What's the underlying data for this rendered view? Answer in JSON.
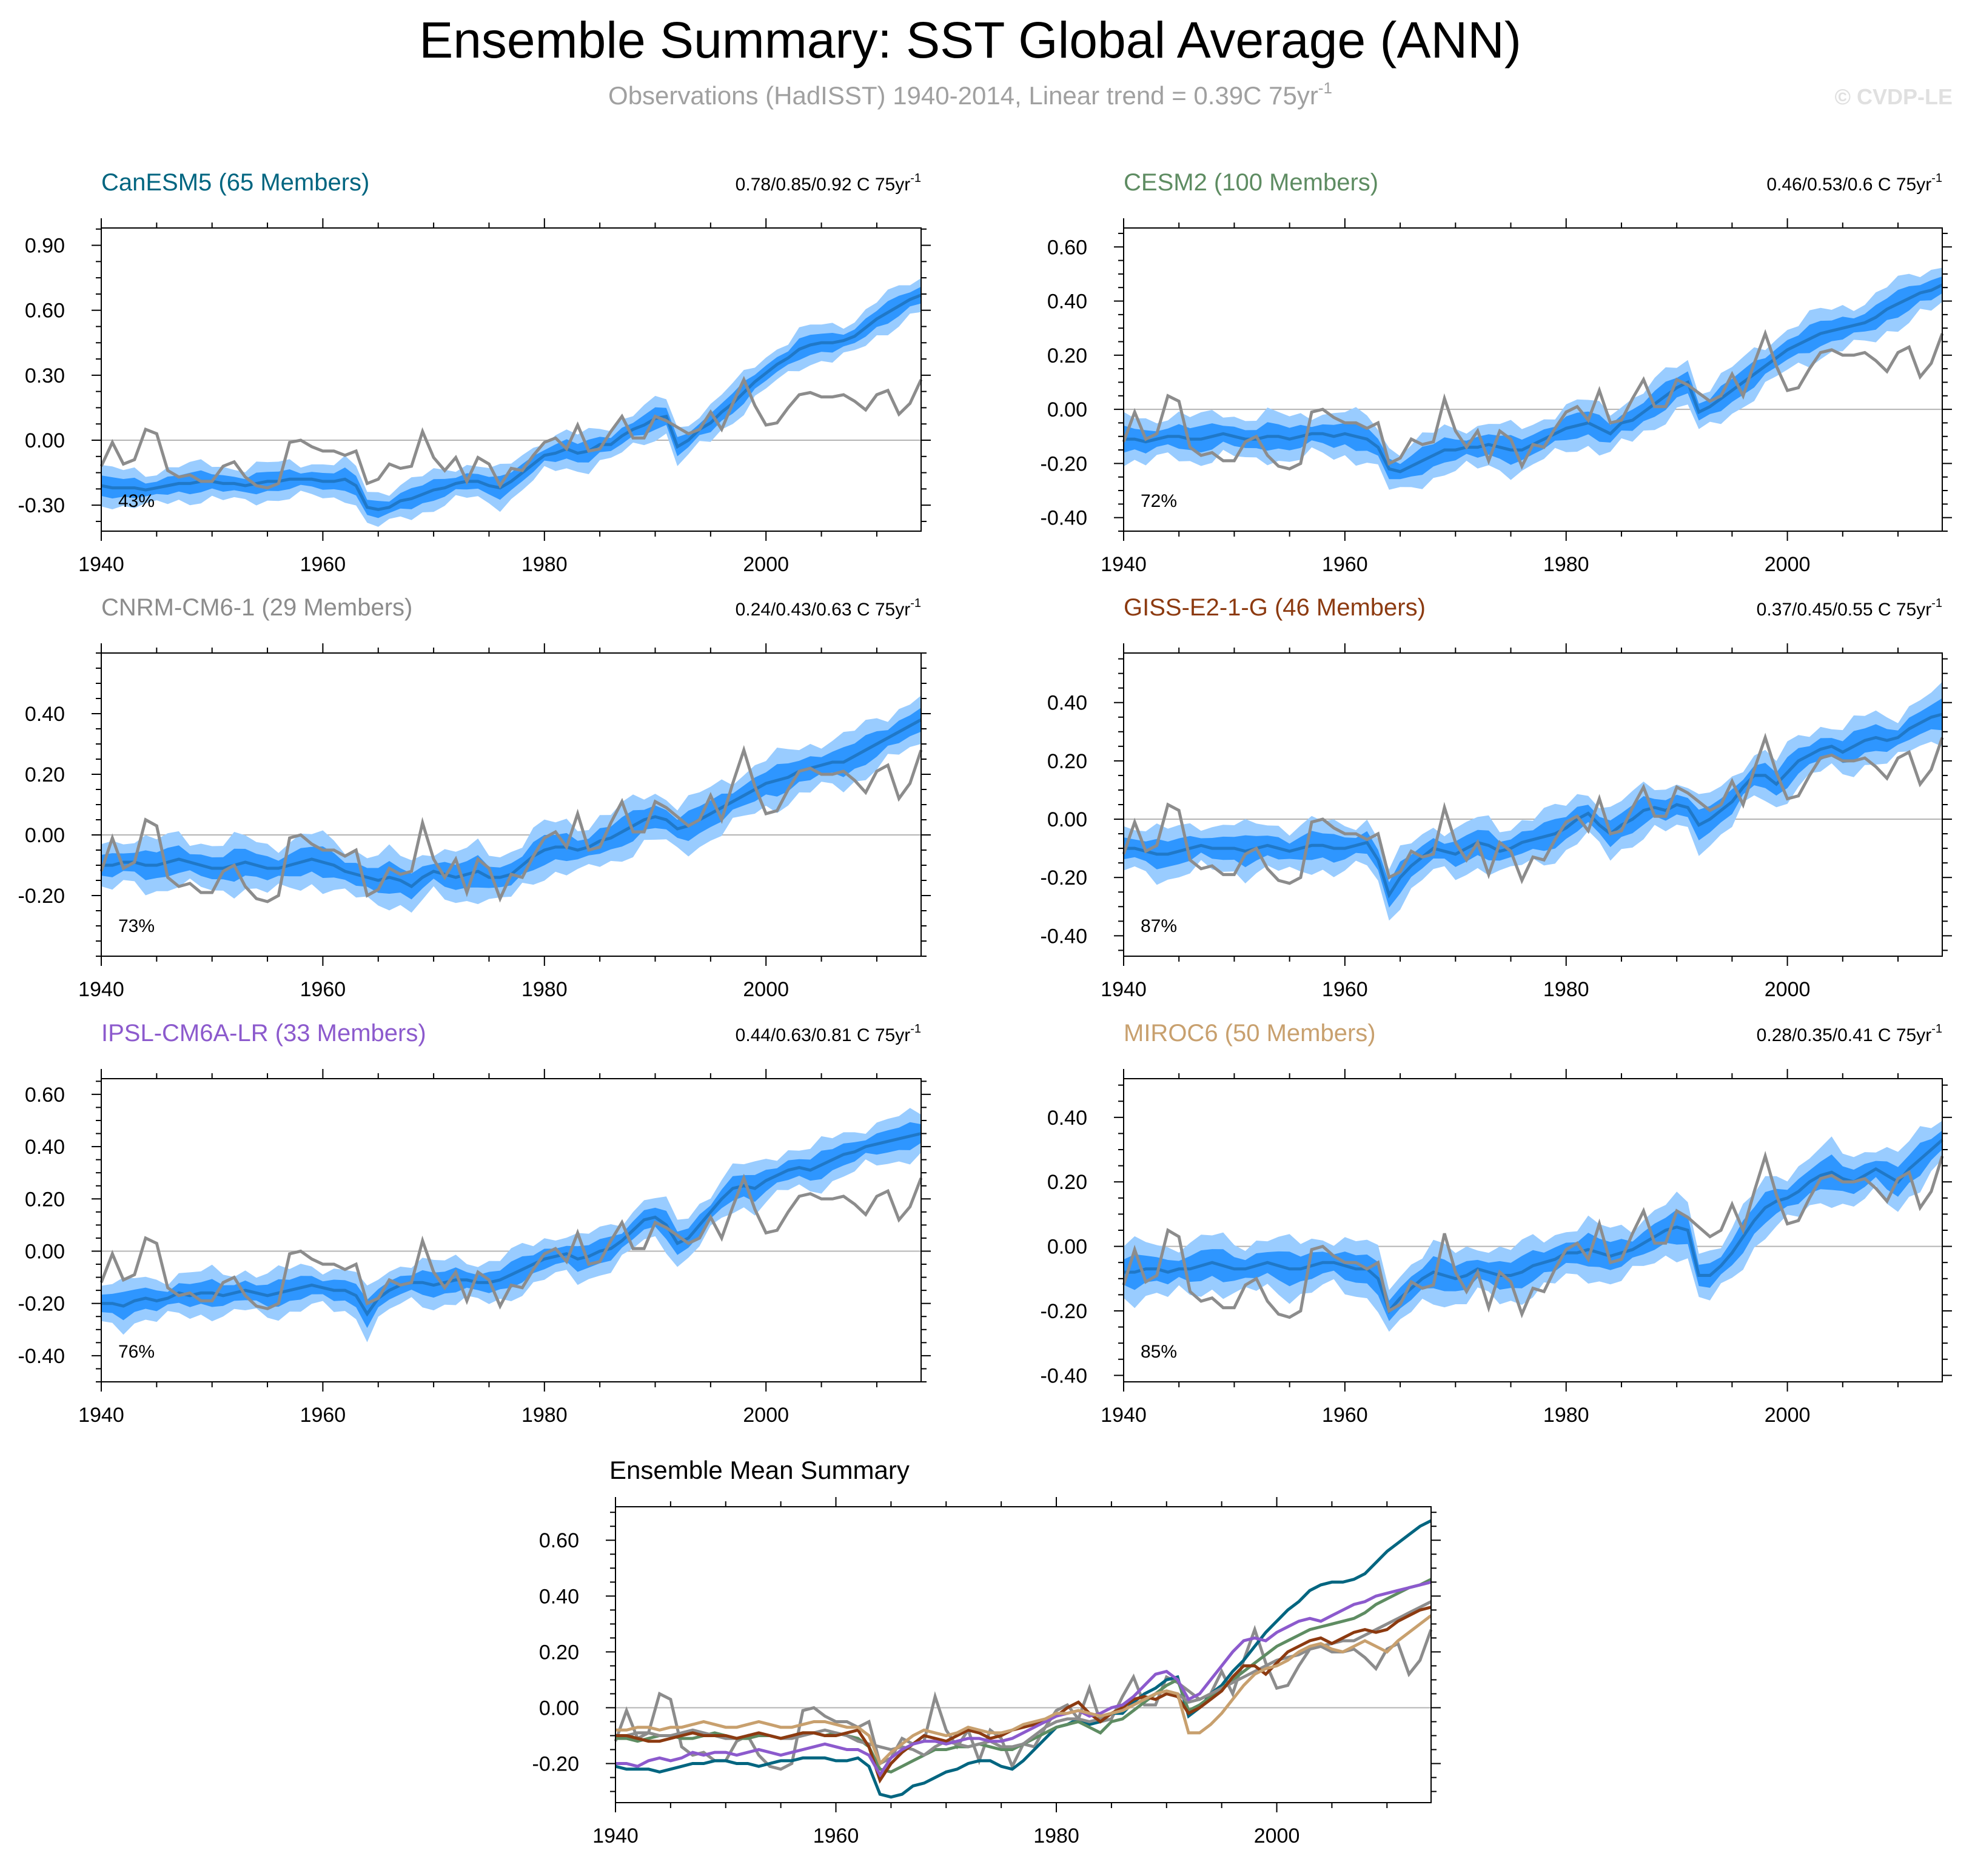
{
  "title": "Ensemble Summary: SST Global Average (ANN)",
  "subtitle": "Observations (HadISST) 1940-2014, Linear trend = 0.39C 75yr",
  "subtitle_sup": "-1",
  "watermark": "© CVDP-LE",
  "colors": {
    "band_outer": "#99CCFF",
    "band_inner": "#2E96FF",
    "mean_line": "#1F78C8",
    "obs": "#8C8C8C",
    "zero_line": "#B4B4B4"
  },
  "chart_data": [
    {
      "id": "canesm5",
      "type": "line",
      "title": "CanESM5 (65 Members)",
      "title_color": "#006580",
      "trend_label": "0.78/0.85/0.92 C 75yr",
      "trend_sup": "-1",
      "percent_label": "43%",
      "xlim": [
        1940,
        2014
      ],
      "xticks": [
        1940,
        1960,
        1980,
        2000
      ],
      "ylim": [
        -0.42,
        0.98
      ],
      "yticks": [
        -0.3,
        0.0,
        0.3,
        0.6,
        0.9
      ],
      "ytick_labels": [
        "-0.30",
        "0.00",
        "0.30",
        "0.60",
        "0.90"
      ],
      "mean": [
        -0.21,
        -0.22,
        -0.22,
        -0.22,
        -0.23,
        -0.22,
        -0.21,
        -0.2,
        -0.2,
        -0.19,
        -0.19,
        -0.2,
        -0.2,
        -0.21,
        -0.2,
        -0.19,
        -0.19,
        -0.18,
        -0.18,
        -0.18,
        -0.19,
        -0.19,
        -0.18,
        -0.21,
        -0.31,
        -0.32,
        -0.31,
        -0.28,
        -0.27,
        -0.25,
        -0.23,
        -0.22,
        -0.2,
        -0.19,
        -0.19,
        -0.21,
        -0.22,
        -0.19,
        -0.15,
        -0.11,
        -0.07,
        -0.06,
        -0.04,
        -0.06,
        -0.05,
        -0.02,
        -0.02,
        0.02,
        0.05,
        0.07,
        0.1,
        0.11,
        -0.03,
        0.0,
        0.05,
        0.08,
        0.13,
        0.17,
        0.22,
        0.27,
        0.31,
        0.35,
        0.38,
        0.42,
        0.44,
        0.45,
        0.45,
        0.46,
        0.48,
        0.52,
        0.56,
        0.59,
        0.62,
        0.65,
        0.67
      ]
    },
    {
      "id": "cesm2",
      "type": "line",
      "title": "CESM2 (100 Members)",
      "title_color": "#5E8C62",
      "trend_label": "0.46/0.53/0.6 C 75yr",
      "trend_sup": "-1",
      "percent_label": "72%",
      "xlim": [
        1940,
        2014
      ],
      "xticks": [
        1940,
        1960,
        1980,
        2000
      ],
      "ylim": [
        -0.45,
        0.67
      ],
      "yticks": [
        -0.4,
        -0.2,
        0.0,
        0.2,
        0.4,
        0.6
      ],
      "ytick_labels": [
        "-0.40",
        "-0.20",
        "0.00",
        "0.20",
        "0.40",
        "0.60"
      ],
      "mean": [
        -0.11,
        -0.11,
        -0.12,
        -0.11,
        -0.1,
        -0.1,
        -0.11,
        -0.11,
        -0.1,
        -0.09,
        -0.1,
        -0.11,
        -0.11,
        -0.1,
        -0.1,
        -0.11,
        -0.1,
        -0.09,
        -0.09,
        -0.1,
        -0.09,
        -0.1,
        -0.11,
        -0.14,
        -0.22,
        -0.23,
        -0.21,
        -0.19,
        -0.17,
        -0.15,
        -0.15,
        -0.14,
        -0.14,
        -0.13,
        -0.14,
        -0.15,
        -0.15,
        -0.13,
        -0.11,
        -0.09,
        -0.07,
        -0.06,
        -0.05,
        -0.07,
        -0.09,
        -0.05,
        -0.04,
        -0.01,
        0.02,
        0.05,
        0.08,
        0.1,
        -0.01,
        0.01,
        0.04,
        0.07,
        0.1,
        0.13,
        0.16,
        0.19,
        0.22,
        0.24,
        0.26,
        0.28,
        0.29,
        0.3,
        0.31,
        0.32,
        0.34,
        0.37,
        0.39,
        0.41,
        0.43,
        0.44,
        0.46
      ]
    },
    {
      "id": "cnrm",
      "type": "line",
      "title": "CNRM-CM6-1 (29 Members)",
      "title_color": "#8C8C8C",
      "trend_label": "0.24/0.43/0.63 C 75yr",
      "trend_sup": "-1",
      "percent_label": "73%",
      "xlim": [
        1940,
        2014
      ],
      "xticks": [
        1940,
        1960,
        1980,
        2000
      ],
      "ylim": [
        -0.4,
        0.6
      ],
      "yticks": [
        -0.2,
        0.0,
        0.2,
        0.4
      ],
      "ytick_labels": [
        "-0.20",
        "0.00",
        "0.20",
        "0.40"
      ],
      "mean": [
        -0.1,
        -0.1,
        -0.09,
        -0.09,
        -0.1,
        -0.1,
        -0.09,
        -0.08,
        -0.09,
        -0.1,
        -0.11,
        -0.11,
        -0.1,
        -0.09,
        -0.1,
        -0.11,
        -0.11,
        -0.1,
        -0.09,
        -0.08,
        -0.09,
        -0.1,
        -0.12,
        -0.13,
        -0.14,
        -0.15,
        -0.14,
        -0.15,
        -0.17,
        -0.14,
        -0.12,
        -0.13,
        -0.14,
        -0.13,
        -0.12,
        -0.14,
        -0.14,
        -0.13,
        -0.1,
        -0.07,
        -0.05,
        -0.04,
        -0.04,
        -0.05,
        -0.04,
        -0.02,
        -0.01,
        0.01,
        0.03,
        0.05,
        0.06,
        0.05,
        0.02,
        0.03,
        0.05,
        0.07,
        0.09,
        0.11,
        0.13,
        0.15,
        0.17,
        0.18,
        0.19,
        0.21,
        0.22,
        0.23,
        0.24,
        0.24,
        0.26,
        0.28,
        0.3,
        0.32,
        0.34,
        0.36,
        0.38
      ]
    },
    {
      "id": "giss",
      "type": "line",
      "title": "GISS-E2-1-G (46 Members)",
      "title_color": "#8C3A10",
      "trend_label": "0.37/0.45/0.55 C 75yr",
      "trend_sup": "-1",
      "percent_label": "87%",
      "xlim": [
        1940,
        2014
      ],
      "xticks": [
        1940,
        1960,
        1980,
        2000
      ],
      "ylim": [
        -0.47,
        0.57
      ],
      "yticks": [
        -0.4,
        -0.2,
        0.0,
        0.2,
        0.4
      ],
      "ytick_labels": [
        "-0.40",
        "-0.20",
        "0.00",
        "0.20",
        "0.40"
      ],
      "mean": [
        -0.1,
        -0.1,
        -0.11,
        -0.12,
        -0.12,
        -0.11,
        -0.1,
        -0.09,
        -0.1,
        -0.1,
        -0.1,
        -0.11,
        -0.1,
        -0.09,
        -0.1,
        -0.11,
        -0.1,
        -0.09,
        -0.09,
        -0.1,
        -0.1,
        -0.09,
        -0.08,
        -0.14,
        -0.26,
        -0.2,
        -0.16,
        -0.13,
        -0.1,
        -0.11,
        -0.12,
        -0.1,
        -0.08,
        -0.09,
        -0.11,
        -0.1,
        -0.08,
        -0.07,
        -0.06,
        -0.05,
        -0.03,
        0.0,
        0.02,
        -0.02,
        -0.05,
        -0.02,
        0.0,
        0.03,
        0.04,
        0.03,
        0.05,
        0.04,
        -0.02,
        0.0,
        0.03,
        0.06,
        0.11,
        0.15,
        0.15,
        0.12,
        0.16,
        0.2,
        0.22,
        0.24,
        0.25,
        0.23,
        0.25,
        0.27,
        0.28,
        0.27,
        0.28,
        0.31,
        0.33,
        0.35,
        0.36
      ]
    },
    {
      "id": "ipsl",
      "type": "line",
      "title": "IPSL-CM6A-LR (33 Members)",
      "title_color": "#8C5ACD",
      "trend_label": "0.44/0.63/0.81 C 75yr",
      "trend_sup": "-1",
      "percent_label": "76%",
      "xlim": [
        1940,
        2014
      ],
      "xticks": [
        1940,
        1960,
        1980,
        2000
      ],
      "ylim": [
        -0.5,
        0.66
      ],
      "yticks": [
        -0.4,
        -0.2,
        0.0,
        0.2,
        0.4,
        0.6
      ],
      "ytick_labels": [
        "-0.40",
        "-0.20",
        "0.00",
        "0.20",
        "0.40",
        "0.60"
      ],
      "mean": [
        -0.2,
        -0.2,
        -0.21,
        -0.19,
        -0.18,
        -0.19,
        -0.18,
        -0.16,
        -0.17,
        -0.16,
        -0.16,
        -0.17,
        -0.16,
        -0.15,
        -0.16,
        -0.17,
        -0.16,
        -0.15,
        -0.14,
        -0.13,
        -0.14,
        -0.15,
        -0.15,
        -0.17,
        -0.24,
        -0.18,
        -0.15,
        -0.13,
        -0.12,
        -0.12,
        -0.13,
        -0.12,
        -0.11,
        -0.11,
        -0.12,
        -0.12,
        -0.11,
        -0.09,
        -0.07,
        -0.05,
        -0.03,
        -0.02,
        -0.01,
        -0.03,
        -0.02,
        0.0,
        0.01,
        0.04,
        0.08,
        0.12,
        0.13,
        0.1,
        0.03,
        0.05,
        0.1,
        0.15,
        0.2,
        0.24,
        0.25,
        0.24,
        0.27,
        0.29,
        0.31,
        0.32,
        0.31,
        0.33,
        0.35,
        0.37,
        0.38,
        0.4,
        0.41,
        0.42,
        0.43,
        0.44,
        0.45
      ]
    },
    {
      "id": "miroc6",
      "type": "line",
      "title": "MIROC6 (50 Members)",
      "title_color": "#C8A06E",
      "trend_label": "0.28/0.35/0.41 C 75yr",
      "trend_sup": "-1",
      "percent_label": "85%",
      "xlim": [
        1940,
        2014
      ],
      "xticks": [
        1940,
        1960,
        1980,
        2000
      ],
      "ylim": [
        -0.42,
        0.52
      ],
      "yticks": [
        -0.4,
        -0.2,
        0.0,
        0.2,
        0.4
      ],
      "ytick_labels": [
        "-0.40",
        "-0.20",
        "0.00",
        "0.20",
        "0.40"
      ],
      "mean": [
        -0.08,
        -0.08,
        -0.07,
        -0.07,
        -0.08,
        -0.07,
        -0.07,
        -0.06,
        -0.05,
        -0.06,
        -0.07,
        -0.07,
        -0.06,
        -0.05,
        -0.06,
        -0.07,
        -0.07,
        -0.06,
        -0.05,
        -0.05,
        -0.06,
        -0.07,
        -0.07,
        -0.1,
        -0.2,
        -0.16,
        -0.13,
        -0.1,
        -0.08,
        -0.09,
        -0.1,
        -0.09,
        -0.07,
        -0.08,
        -0.09,
        -0.09,
        -0.08,
        -0.06,
        -0.05,
        -0.04,
        -0.02,
        -0.02,
        -0.01,
        -0.02,
        -0.03,
        -0.02,
        -0.01,
        0.01,
        0.03,
        0.05,
        0.06,
        0.05,
        -0.09,
        -0.09,
        -0.06,
        -0.02,
        0.03,
        0.08,
        0.12,
        0.14,
        0.15,
        0.17,
        0.2,
        0.22,
        0.23,
        0.21,
        0.2,
        0.22,
        0.24,
        0.22,
        0.2,
        0.24,
        0.27,
        0.3,
        0.33
      ]
    }
  ],
  "observations": {
    "name": "HadISST",
    "years": [
      1940,
      2014
    ],
    "values": [
      -0.12,
      -0.01,
      -0.11,
      -0.09,
      0.05,
      0.03,
      -0.14,
      -0.17,
      -0.16,
      -0.19,
      -0.19,
      -0.12,
      -0.1,
      -0.17,
      -0.21,
      -0.22,
      -0.2,
      -0.01,
      0.0,
      -0.03,
      -0.05,
      -0.05,
      -0.07,
      -0.05,
      -0.2,
      -0.18,
      -0.11,
      -0.13,
      -0.12,
      0.04,
      -0.08,
      -0.14,
      -0.08,
      -0.19,
      -0.08,
      -0.11,
      -0.21,
      -0.13,
      -0.14,
      -0.07,
      -0.01,
      0.01,
      -0.04,
      0.07,
      -0.05,
      -0.04,
      0.04,
      0.11,
      0.01,
      0.01,
      0.11,
      0.09,
      0.06,
      0.03,
      0.05,
      0.13,
      0.05,
      0.17,
      0.28,
      0.16,
      0.07,
      0.08,
      0.15,
      0.21,
      0.22,
      0.2,
      0.2,
      0.21,
      0.18,
      0.14,
      0.21,
      0.23,
      0.12,
      0.17,
      0.28
    ]
  },
  "summary": {
    "title": "Ensemble Mean Summary",
    "xlim": [
      1940,
      2014
    ],
    "xticks": [
      1940,
      1960,
      1980,
      2000
    ],
    "ylim": [
      -0.34,
      0.72
    ],
    "yticks": [
      -0.2,
      0.0,
      0.2,
      0.4,
      0.6
    ],
    "ytick_labels": [
      "-0.20",
      "0.00",
      "0.20",
      "0.40",
      "0.60"
    ]
  }
}
